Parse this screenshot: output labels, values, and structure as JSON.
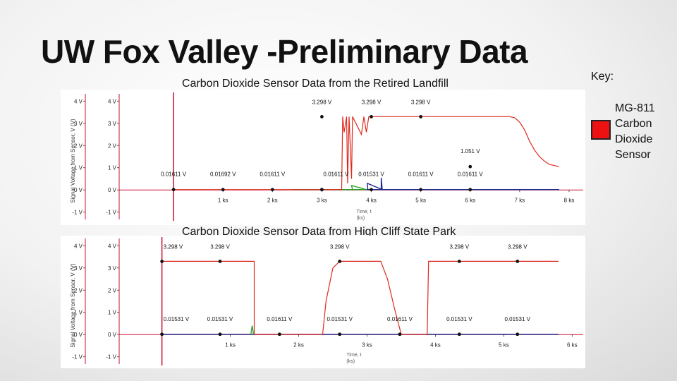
{
  "slide": {
    "title": "UW Fox Valley -Preliminary Data"
  },
  "key": {
    "label": "Key:",
    "lines": [
      "MG-811",
      "Carbon",
      "Dioxide",
      "Sensor"
    ],
    "color": "#ee1111"
  },
  "colors": {
    "co2": "#dd2a1e",
    "baseline": "#1a2a8c",
    "green": "#2aa02a",
    "axis": "#c8102e"
  },
  "chart_data": [
    {
      "type": "line",
      "title": "Carbon Dioxide Sensor Data from the Retired Landfill",
      "xlabel": "Time, t (ks)",
      "ylabel": "Signal Voltage from Sensor, V (V)",
      "xlim": [
        -0.8,
        8.2
      ],
      "ylim": [
        -1.2,
        4.2
      ],
      "y_ticks": [
        "4 V",
        "3 V",
        "2 V",
        "1 V",
        "0 V",
        "-1 V"
      ],
      "x_ticks": [
        "1 ks",
        "2 ks",
        "3 ks",
        "4 ks",
        "5 ks",
        "6 ks",
        "7 ks",
        "8 ks"
      ],
      "series": [
        {
          "color": "#dd2a1e",
          "points": [
            [
              0,
              0.016
            ],
            [
              3.4,
              0.016
            ],
            [
              3.42,
              3.3
            ],
            [
              3.45,
              2.6
            ],
            [
              3.5,
              3.3
            ],
            [
              3.52,
              0.3
            ],
            [
              3.55,
              3.3
            ],
            [
              3.6,
              0.5
            ],
            [
              3.62,
              3.3
            ],
            [
              3.8,
              2.5
            ],
            [
              3.85,
              3.3
            ],
            [
              3.9,
              2.6
            ],
            [
              3.95,
              3.3
            ],
            [
              6.8,
              3.3
            ],
            [
              6.9,
              3.25
            ],
            [
              7.0,
              3.05
            ],
            [
              7.1,
              2.7
            ],
            [
              7.2,
              2.2
            ],
            [
              7.3,
              1.8
            ],
            [
              7.4,
              1.5
            ],
            [
              7.5,
              1.3
            ],
            [
              7.6,
              1.15
            ],
            [
              7.8,
              1.05
            ]
          ]
        },
        {
          "color": "#1a2a8c",
          "points": [
            [
              3.9,
              0.016
            ],
            [
              7.8,
              0.016
            ],
            [
              4.2,
              0.016
            ],
            [
              4.2,
              0.55
            ],
            [
              4.22,
              0.016
            ],
            [
              3.92,
              0.3
            ],
            [
              3.93,
              0.016
            ]
          ]
        },
        {
          "color": "#2aa02a",
          "points": [
            [
              2.4,
              0.016
            ],
            [
              3.9,
              0.016
            ],
            [
              3.6,
              0.2
            ],
            [
              3.62,
              0.016
            ]
          ]
        }
      ],
      "markers": [
        {
          "x": 0,
          "y": 0.016,
          "label": "0.01611 V",
          "pos": "above"
        },
        {
          "x": 1,
          "y": 0.016,
          "label": "0.01692 V",
          "pos": "above"
        },
        {
          "x": 2,
          "y": 0.016,
          "label": "0.01611 V",
          "pos": "above"
        },
        {
          "x": 3,
          "y": 0.016,
          "label": "",
          "pos": "above"
        },
        {
          "x": 3.0,
          "y": 0.016,
          "label": "0.01611 V",
          "pos": "above-right"
        },
        {
          "x": 4,
          "y": 0.016,
          "label": "0.01531 V",
          "pos": "above"
        },
        {
          "x": 5,
          "y": 0.016,
          "label": "0.01611 V",
          "pos": "above"
        },
        {
          "x": 6,
          "y": 0.016,
          "label": "0.01611 V",
          "pos": "above"
        },
        {
          "x": 3.0,
          "y": 3.298,
          "label": "3.298 V",
          "pos": "top"
        },
        {
          "x": 4,
          "y": 3.298,
          "label": "3.298 V",
          "pos": "top"
        },
        {
          "x": 5,
          "y": 3.298,
          "label": "3.298 V",
          "pos": "top"
        },
        {
          "x": 6,
          "y": 1.051,
          "label": "1.051 V",
          "pos": "above"
        }
      ]
    },
    {
      "type": "line",
      "title": "Carbon Dioxide Sensor Data from High Cliff State Park",
      "xlabel": "Time, t (ks)",
      "ylabel": "Signal Voltage from Sensor, V (V)",
      "xlim": [
        -0.45,
        6.1
      ],
      "ylim": [
        -1.2,
        4.2
      ],
      "y_ticks": [
        "4 V",
        "3 V",
        "2 V",
        "1 V",
        "0 V",
        "-1 V"
      ],
      "x_ticks": [
        "1 ks",
        "2 ks",
        "3 ks",
        "4 ks",
        "5 ks",
        "6 ks"
      ],
      "series": [
        {
          "color": "#dd2a1e",
          "points": [
            [
              0,
              3.298
            ],
            [
              1.35,
              3.298
            ],
            [
              1.35,
              0.015
            ],
            [
              2.35,
              0.015
            ],
            [
              2.4,
              1.5
            ],
            [
              2.5,
              3.0
            ],
            [
              2.6,
              3.298
            ],
            [
              3.2,
              3.298
            ],
            [
              3.3,
              2.5
            ],
            [
              3.4,
              1.2
            ],
            [
              3.5,
              0.015
            ],
            [
              3.88,
              0.015
            ],
            [
              3.9,
              3.298
            ],
            [
              5.8,
              3.298
            ]
          ]
        },
        {
          "color": "#1a2a8c",
          "points": [
            [
              0,
              0.015
            ],
            [
              5.8,
              0.015
            ]
          ]
        },
        {
          "color": "#2aa02a",
          "points": [
            [
              1.3,
              0.015
            ],
            [
              1.32,
              0.4
            ],
            [
              1.34,
              0.015
            ]
          ]
        }
      ],
      "markers": [
        {
          "x": 0,
          "y": 3.298,
          "label": "3.298 V",
          "pos": "top-right"
        },
        {
          "x": 0.85,
          "y": 3.298,
          "label": "3.298 V",
          "pos": "top"
        },
        {
          "x": 2.6,
          "y": 3.298,
          "label": "3.298 V",
          "pos": "top"
        },
        {
          "x": 4.35,
          "y": 3.298,
          "label": "3.298 V",
          "pos": "top"
        },
        {
          "x": 5.2,
          "y": 3.298,
          "label": "3.298 V",
          "pos": "top"
        },
        {
          "x": 0,
          "y": 0.015,
          "label": "0.01531 V",
          "pos": "above-right"
        },
        {
          "x": 0.85,
          "y": 0.015,
          "label": "0.01531 V",
          "pos": "above"
        },
        {
          "x": 1.72,
          "y": 0.015,
          "label": "0.01611 V",
          "pos": "above"
        },
        {
          "x": 2.6,
          "y": 0.015,
          "label": "0.01531 V",
          "pos": "above"
        },
        {
          "x": 3.48,
          "y": 0.015,
          "label": "0.01611 V",
          "pos": "above"
        },
        {
          "x": 4.35,
          "y": 0.015,
          "label": "0.01531 V",
          "pos": "above"
        },
        {
          "x": 5.2,
          "y": 0.015,
          "label": "0.01531 V",
          "pos": "above"
        }
      ]
    }
  ]
}
